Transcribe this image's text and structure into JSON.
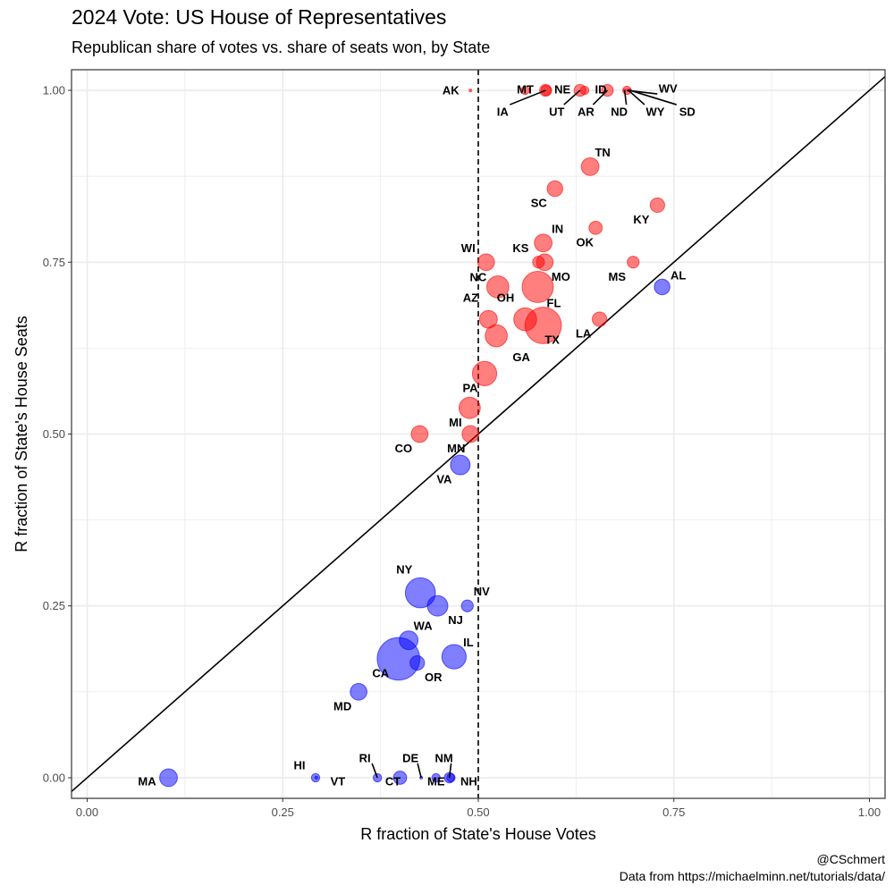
{
  "header": {
    "title": "2024 Vote: US House of Representatives",
    "subtitle": "Republican share of votes vs. share of seats won, by State"
  },
  "caption": {
    "line1": "@CSchmert",
    "line2": "Data from https://michaelminn.net/tutorials/data/"
  },
  "colors": {
    "republican": "#ff0000",
    "democrat": "#0000ff",
    "grid": "#ebebeb",
    "panel_border": "#333333"
  },
  "chart_data": {
    "type": "scatter",
    "title": "2024 Vote: US House of Representatives",
    "subtitle": "Republican share of votes vs. share of seats won, by State",
    "xlabel": "R fraction of State's House Votes",
    "ylabel": "R fraction of State's House Seats",
    "xlim": [
      -0.02,
      1.02
    ],
    "ylim": [
      -0.03,
      1.03
    ],
    "xticks": [
      0,
      0.25,
      0.5,
      0.75,
      1
    ],
    "yticks": [
      0,
      0.25,
      0.5,
      0.75,
      1
    ],
    "xtick_labels": [
      "0.00",
      "0.25",
      "0.50",
      "0.75",
      "1.00"
    ],
    "ytick_labels": [
      "0.00",
      "0.25",
      "0.50",
      "0.75",
      "1.00"
    ],
    "grid": true,
    "reference_lines": [
      {
        "type": "diagonal",
        "style": "solid"
      },
      {
        "type": "vertical",
        "x": 0.5,
        "style": "dashed"
      }
    ],
    "size_encodes": "number of House seats",
    "color_encodes": "majority party (red = Republican, blue = Democratic)",
    "points": [
      {
        "state": "AK",
        "x": 0.49,
        "y": 1.0,
        "seats": 1,
        "party": "R",
        "label_dx": -22,
        "label_dy": 0
      },
      {
        "state": "MT",
        "x": 0.56,
        "y": 1.0,
        "seats": 2,
        "party": "R",
        "label_dx": 0,
        "label_dy": -1
      },
      {
        "state": "IA",
        "x": 0.586,
        "y": 1.0,
        "seats": 4,
        "party": "R",
        "label_dx": -48,
        "label_dy": 24,
        "leader": true
      },
      {
        "state": "NE",
        "x": 0.587,
        "y": 1.0,
        "seats": 3,
        "party": "R",
        "label_dx": 18,
        "label_dy": -1
      },
      {
        "state": "UT",
        "x": 0.63,
        "y": 1.0,
        "seats": 4,
        "party": "R",
        "label_dx": -26,
        "label_dy": 24,
        "leader": true
      },
      {
        "state": "ID",
        "x": 0.636,
        "y": 1.0,
        "seats": 2,
        "party": "R",
        "label_dx": 18,
        "label_dy": -1
      },
      {
        "state": "AR",
        "x": 0.665,
        "y": 1.0,
        "seats": 4,
        "party": "R",
        "label_dx": -24,
        "label_dy": 24,
        "leader": true
      },
      {
        "state": "ND",
        "x": 0.687,
        "y": 1.0,
        "seats": 1,
        "party": "R",
        "label_dx": -6,
        "label_dy": 24,
        "leader": true
      },
      {
        "state": "WV",
        "x": 0.69,
        "y": 1.0,
        "seats": 2,
        "party": "R",
        "label_dx": 46,
        "label_dy": -2,
        "leader": true
      },
      {
        "state": "WY",
        "x": 0.692,
        "y": 1.0,
        "seats": 1,
        "party": "R",
        "label_dx": 30,
        "label_dy": 24,
        "leader": true
      },
      {
        "state": "SD",
        "x": 0.694,
        "y": 1.0,
        "seats": 1,
        "party": "R",
        "label_dx": 64,
        "label_dy": 24,
        "leader": true
      },
      {
        "state": "TN",
        "x": 0.643,
        "y": 0.889,
        "seats": 9,
        "party": "R",
        "label_dx": 14,
        "label_dy": -16
      },
      {
        "state": "SC",
        "x": 0.598,
        "y": 0.857,
        "seats": 7,
        "party": "R",
        "label_dx": -18,
        "label_dy": 16
      },
      {
        "state": "KY",
        "x": 0.729,
        "y": 0.833,
        "seats": 6,
        "party": "R",
        "label_dx": -18,
        "label_dy": 16
      },
      {
        "state": "OK",
        "x": 0.65,
        "y": 0.8,
        "seats": 5,
        "party": "R",
        "label_dx": -12,
        "label_dy": 16
      },
      {
        "state": "IN",
        "x": 0.583,
        "y": 0.778,
        "seats": 9,
        "party": "R",
        "label_dx": 16,
        "label_dy": -16
      },
      {
        "state": "KS",
        "x": 0.577,
        "y": 0.75,
        "seats": 4,
        "party": "R",
        "label_dx": -20,
        "label_dy": -16
      },
      {
        "state": "WI",
        "x": 0.51,
        "y": 0.75,
        "seats": 8,
        "party": "R",
        "label_dx": -20,
        "label_dy": -16
      },
      {
        "state": "MO",
        "x": 0.585,
        "y": 0.75,
        "seats": 8,
        "party": "R",
        "label_dx": 18,
        "label_dy": 16
      },
      {
        "state": "MS",
        "x": 0.698,
        "y": 0.75,
        "seats": 4,
        "party": "R",
        "label_dx": -18,
        "label_dy": 16
      },
      {
        "state": "AL",
        "x": 0.735,
        "y": 0.714,
        "seats": 7,
        "party": "R-vote-D-color",
        "color": "D",
        "label_dx": 18,
        "label_dy": -13
      },
      {
        "state": "NC",
        "x": 0.525,
        "y": 0.714,
        "seats": 14,
        "party": "R",
        "label_dx": -22,
        "label_dy": -11
      },
      {
        "state": "FL",
        "x": 0.576,
        "y": 0.714,
        "seats": 28,
        "party": "R",
        "label_dx": 18,
        "label_dy": 18
      },
      {
        "state": "AZ",
        "x": 0.513,
        "y": 0.667,
        "seats": 9,
        "party": "R",
        "label_dx": -20,
        "label_dy": -24
      },
      {
        "state": "OH",
        "x": 0.56,
        "y": 0.667,
        "seats": 15,
        "party": "R",
        "label_dx": -22,
        "label_dy": -24
      },
      {
        "state": "LA",
        "x": 0.655,
        "y": 0.667,
        "seats": 6,
        "party": "R",
        "label_dx": -18,
        "label_dy": 16
      },
      {
        "state": "TX",
        "x": 0.583,
        "y": 0.658,
        "seats": 38,
        "party": "R",
        "label_dx": 10,
        "label_dy": 16
      },
      {
        "state": "GA",
        "x": 0.523,
        "y": 0.643,
        "seats": 14,
        "party": "R",
        "label_dx": 28,
        "label_dy": 24
      },
      {
        "state": "PA",
        "x": 0.508,
        "y": 0.588,
        "seats": 17,
        "party": "R",
        "label_dx": -16,
        "label_dy": 16
      },
      {
        "state": "MI",
        "x": 0.489,
        "y": 0.538,
        "seats": 13,
        "party": "R",
        "label_dx": -16,
        "label_dy": 16
      },
      {
        "state": "CO",
        "x": 0.425,
        "y": 0.5,
        "seats": 8,
        "party": "R",
        "label_dx": -18,
        "label_dy": 16
      },
      {
        "state": "MN",
        "x": 0.49,
        "y": 0.5,
        "seats": 8,
        "party": "R",
        "label_dx": -16,
        "label_dy": 16
      },
      {
        "state": "VA",
        "x": 0.477,
        "y": 0.455,
        "seats": 11,
        "party": "D",
        "label_dx": -18,
        "label_dy": 16
      },
      {
        "state": "NY",
        "x": 0.426,
        "y": 0.269,
        "seats": 26,
        "party": "D",
        "label_dx": -18,
        "label_dy": -26
      },
      {
        "state": "NV",
        "x": 0.486,
        "y": 0.25,
        "seats": 4,
        "party": "D",
        "label_dx": 16,
        "label_dy": -16
      },
      {
        "state": "NJ",
        "x": 0.448,
        "y": 0.25,
        "seats": 12,
        "party": "D",
        "label_dx": 20,
        "label_dy": 16
      },
      {
        "state": "WA",
        "x": 0.411,
        "y": 0.2,
        "seats": 10,
        "party": "D",
        "label_dx": 16,
        "label_dy": -16
      },
      {
        "state": "IL",
        "x": 0.469,
        "y": 0.176,
        "seats": 17,
        "party": "D",
        "label_dx": 16,
        "label_dy": -16
      },
      {
        "state": "CA",
        "x": 0.398,
        "y": 0.173,
        "seats": 52,
        "party": "D",
        "label_dx": -20,
        "label_dy": 16
      },
      {
        "state": "OR",
        "x": 0.422,
        "y": 0.167,
        "seats": 6,
        "party": "D",
        "label_dx": 18,
        "label_dy": 16
      },
      {
        "state": "MD",
        "x": 0.347,
        "y": 0.125,
        "seats": 8,
        "party": "D",
        "label_dx": -18,
        "label_dy": 16
      },
      {
        "state": "MA",
        "x": 0.104,
        "y": 0.0,
        "seats": 9,
        "party": "D",
        "label_dx": -24,
        "label_dy": 4
      },
      {
        "state": "HI",
        "x": 0.292,
        "y": 0.0,
        "seats": 2,
        "party": "D",
        "label_dx": -18,
        "label_dy": -14
      },
      {
        "state": "VT",
        "x": 0.293,
        "y": 0.0,
        "seats": 1,
        "party": "D",
        "label_dx": 24,
        "label_dy": 4
      },
      {
        "state": "RI",
        "x": 0.371,
        "y": 0.0,
        "seats": 2,
        "party": "D",
        "label_dx": -14,
        "label_dy": -22,
        "leader": true
      },
      {
        "state": "CT",
        "x": 0.4,
        "y": 0.0,
        "seats": 5,
        "party": "D",
        "label_dx": -8,
        "label_dy": 4
      },
      {
        "state": "DE",
        "x": 0.427,
        "y": 0.0,
        "seats": 1,
        "party": "D",
        "label_dx": -12,
        "label_dy": -22,
        "leader": true
      },
      {
        "state": "ME",
        "x": 0.446,
        "y": 0.0,
        "seats": 2,
        "party": "D",
        "label_dx": 0,
        "label_dy": 4
      },
      {
        "state": "NM",
        "x": 0.463,
        "y": 0.0,
        "seats": 3,
        "party": "D",
        "label_dx": -6,
        "label_dy": -22,
        "leader": true
      },
      {
        "state": "NH",
        "x": 0.465,
        "y": 0.0,
        "seats": 2,
        "party": "D",
        "label_dx": 20,
        "label_dy": 4
      }
    ]
  }
}
